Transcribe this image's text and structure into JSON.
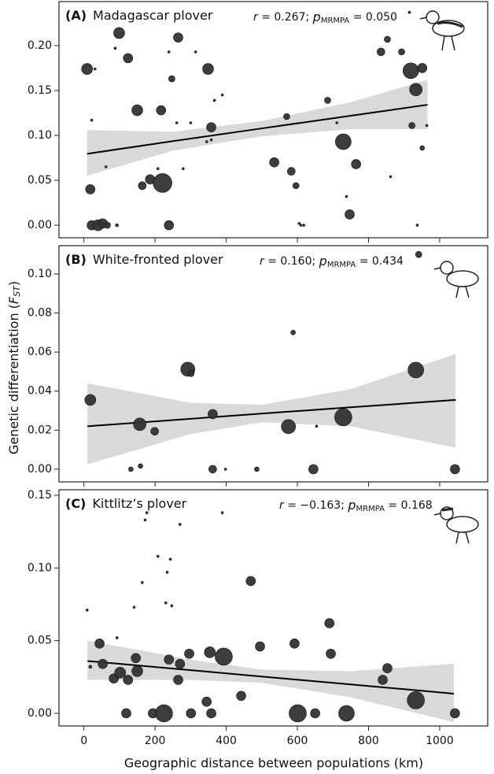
{
  "chart_data": [
    {
      "type": "scatter",
      "label": "(A)",
      "title": "Madagascar plover",
      "stats": {
        "r": "r",
        "r_value": " = 0.267; ",
        "p": "p",
        "p_sub": "MRMPA",
        "p_value": " = 0.050"
      },
      "ylim": [
        -0.014,
        0.249
      ],
      "yticks": [
        {
          "value": 0,
          "label": "0.00"
        },
        {
          "value": 0.05,
          "label": "0.05"
        },
        {
          "value": 0.1,
          "label": "0.10"
        },
        {
          "value": 0.15,
          "label": "0.15"
        },
        {
          "value": 0.2,
          "label": "0.20"
        }
      ],
      "color": "#333333",
      "band_color": "#d9d9d9",
      "line_color": "#000000",
      "points": {
        "x": [
          9,
          18,
          22,
          40,
          53,
          66,
          93,
          99,
          124,
          150,
          164,
          186,
          217,
          221,
          239,
          265,
          247,
          349,
          358,
          535,
          570,
          583,
          596,
          729,
          747,
          765,
          685,
          835,
          853,
          893,
          919,
          933,
          951,
          922,
          951,
          22,
          31,
          88,
          62,
          208,
          239,
          261,
          279,
          300,
          314,
          367,
          389,
          358,
          345,
          605,
          618,
          711,
          738,
          862,
          937,
          964,
          915,
          610
        ],
        "y": [
          0.174,
          0.04,
          0,
          0,
          0.002,
          0,
          0,
          0.214,
          0.186,
          0.128,
          0.044,
          0.051,
          0.128,
          0.047,
          0,
          0.209,
          0.163,
          0.174,
          0.109,
          0.07,
          0.121,
          0.06,
          0.044,
          0.093,
          0.012,
          0.068,
          0.139,
          0.193,
          0.207,
          0.193,
          0.172,
          0.151,
          0.175,
          0.111,
          0.086,
          0.117,
          0.174,
          0.197,
          0.065,
          0.063,
          0.193,
          0.114,
          0.063,
          0.114,
          0.193,
          0.139,
          0.145,
          0.095,
          0.093,
          0.002,
          0,
          0.114,
          0.032,
          0.054,
          0,
          0.111,
          0.237,
          0
        ],
        "sizes": [
          7,
          6,
          6,
          7,
          6,
          4,
          2,
          7,
          6,
          7,
          5,
          6,
          6,
          12,
          6,
          6,
          4,
          7,
          6,
          6,
          4,
          5,
          4,
          10,
          6,
          6,
          4,
          5,
          4,
          4,
          10,
          8,
          6,
          4,
          3,
          1.5,
          1.5,
          1.5,
          1.5,
          1.5,
          1.5,
          1.5,
          1.5,
          1.5,
          1.5,
          1.5,
          1.5,
          1.5,
          1.5,
          1.5,
          1.5,
          1.5,
          1.5,
          1.5,
          1.5,
          1.5,
          1.5,
          1.5
        ]
      },
      "fit": {
        "x": [
          9,
          250,
          500,
          750,
          966
        ],
        "y": [
          0.0795,
          0.0936,
          0.1078,
          0.1219,
          0.1341
        ],
        "upper": [
          0.106,
          0.104,
          0.116,
          0.137,
          0.162
        ],
        "lower": [
          0.055,
          0.083,
          0.099,
          0.107,
          0.107
        ]
      }
    },
    {
      "type": "scatter",
      "label": "(B)",
      "title": "White-fronted plover",
      "stats": {
        "r": "r",
        "r_value": " = 0.160; ",
        "p": "p",
        "p_sub": "MRMPA",
        "p_value": " = 0.434"
      },
      "ylim": [
        -0.0065,
        0.1145
      ],
      "yticks": [
        {
          "value": 0,
          "label": "0.00"
        },
        {
          "value": 0.02,
          "label": "0.02"
        },
        {
          "value": 0.04,
          "label": "0.04"
        },
        {
          "value": 0.06,
          "label": "0.06"
        },
        {
          "value": 0.08,
          "label": "0.08"
        },
        {
          "value": 0.1,
          "label": "0.10"
        }
      ],
      "color": "#333333",
      "band_color": "#d9d9d9",
      "line_color": "#000000",
      "points": {
        "x": [
          18,
          132,
          159,
          157,
          199,
          292,
          301,
          362,
          362,
          398,
          486,
          575,
          588,
          654,
          645,
          729,
          933,
          941,
          1043
        ],
        "y": [
          0.0355,
          0,
          0.0016,
          0.023,
          0.0194,
          0.0512,
          0.049,
          0.0282,
          0,
          0,
          0,
          0.0218,
          0.07,
          0.022,
          0,
          0.0266,
          0.0508,
          0.11,
          0
        ],
        "sizes": [
          7,
          3,
          3,
          8,
          5,
          9,
          4,
          6,
          5,
          1.5,
          3,
          9,
          3,
          1.5,
          6,
          11,
          10,
          4,
          6
        ]
      },
      "fit": {
        "x": [
          10,
          300,
          500,
          750,
          1045
        ],
        "y": [
          0.022,
          0.0258,
          0.0285,
          0.0317,
          0.0355
        ],
        "upper": [
          0.044,
          0.034,
          0.033,
          0.041,
          0.059
        ],
        "lower": [
          0.0025,
          0.018,
          0.024,
          0.022,
          0.011
        ]
      }
    },
    {
      "type": "scatter",
      "label": "(C)",
      "title": "Kittlitz’s plover",
      "stats": {
        "r": "r",
        "r_value": " = −0.163; ",
        "p": "p",
        "p_sub": "MRMPA",
        "p_value": " = 0.168"
      },
      "xlabel_shared": true,
      "xlim": [
        -70,
        1135
      ],
      "xticks": [
        0,
        200,
        400,
        600,
        800,
        1000
      ],
      "ylim": [
        -0.0087,
        0.1538
      ],
      "yticks": [
        {
          "value": 0,
          "label": "0.00"
        },
        {
          "value": 0.05,
          "label": "0.05"
        },
        {
          "value": 0.1,
          "label": "0.10"
        },
        {
          "value": 0.15,
          "label": "0.15"
        }
      ],
      "color": "#333333",
      "band_color": "#d9d9d9",
      "line_color": "#000000",
      "points": {
        "x": [
          18,
          44,
          53,
          84,
          102,
          119,
          124,
          146,
          150,
          194,
          225,
          239,
          265,
          270,
          296,
          301,
          345,
          354,
          358,
          393,
          442,
          469,
          495,
          601,
          592,
          650,
          690,
          694,
          738,
          840,
          853,
          933,
          1043,
          9,
          93,
          141,
          164,
          177,
          172,
          208,
          230,
          234,
          247,
          270,
          243,
          389
        ],
        "y": [
          0.032,
          0.048,
          0.034,
          0.024,
          0.028,
          0,
          0.023,
          0.038,
          0.029,
          0,
          0,
          0.037,
          0.023,
          0.034,
          0.041,
          0,
          0.008,
          0.042,
          0,
          0.039,
          0.012,
          0.091,
          0.046,
          0,
          0.048,
          0,
          0.062,
          0.041,
          0,
          0.023,
          0.031,
          0.009,
          0,
          0.071,
          0.052,
          0.073,
          0.09,
          0.138,
          0.133,
          0.108,
          0.076,
          0.097,
          0.074,
          0.13,
          0.106,
          0.138
        ],
        "sizes": [
          2,
          6,
          6,
          6,
          7,
          6,
          6,
          6,
          7,
          6,
          11,
          6,
          6,
          6,
          6,
          6,
          6,
          7,
          6,
          11,
          6,
          6,
          6,
          11,
          6,
          6,
          6,
          6,
          10,
          6,
          6,
          11,
          6,
          1.5,
          1.5,
          1.5,
          1.5,
          1.5,
          1.5,
          1.5,
          1.5,
          1.5,
          1.5,
          1.5,
          1.5,
          1.5
        ]
      },
      "fit": {
        "x": [
          10,
          300,
          500,
          750,
          1040
        ],
        "y": [
          0.036,
          0.0297,
          0.0253,
          0.0199,
          0.0135
        ],
        "upper": [
          0.05,
          0.037,
          0.03,
          0.029,
          0.034
        ],
        "lower": [
          0.023,
          0.023,
          0.021,
          0.011,
          -0.006
        ]
      }
    }
  ],
  "x_label": "Geographic distance between populations (km)",
  "y_label": {
    "before": "Genetic differentiation (",
    "symbol": "F",
    "sub": "ST",
    "after": ")"
  }
}
